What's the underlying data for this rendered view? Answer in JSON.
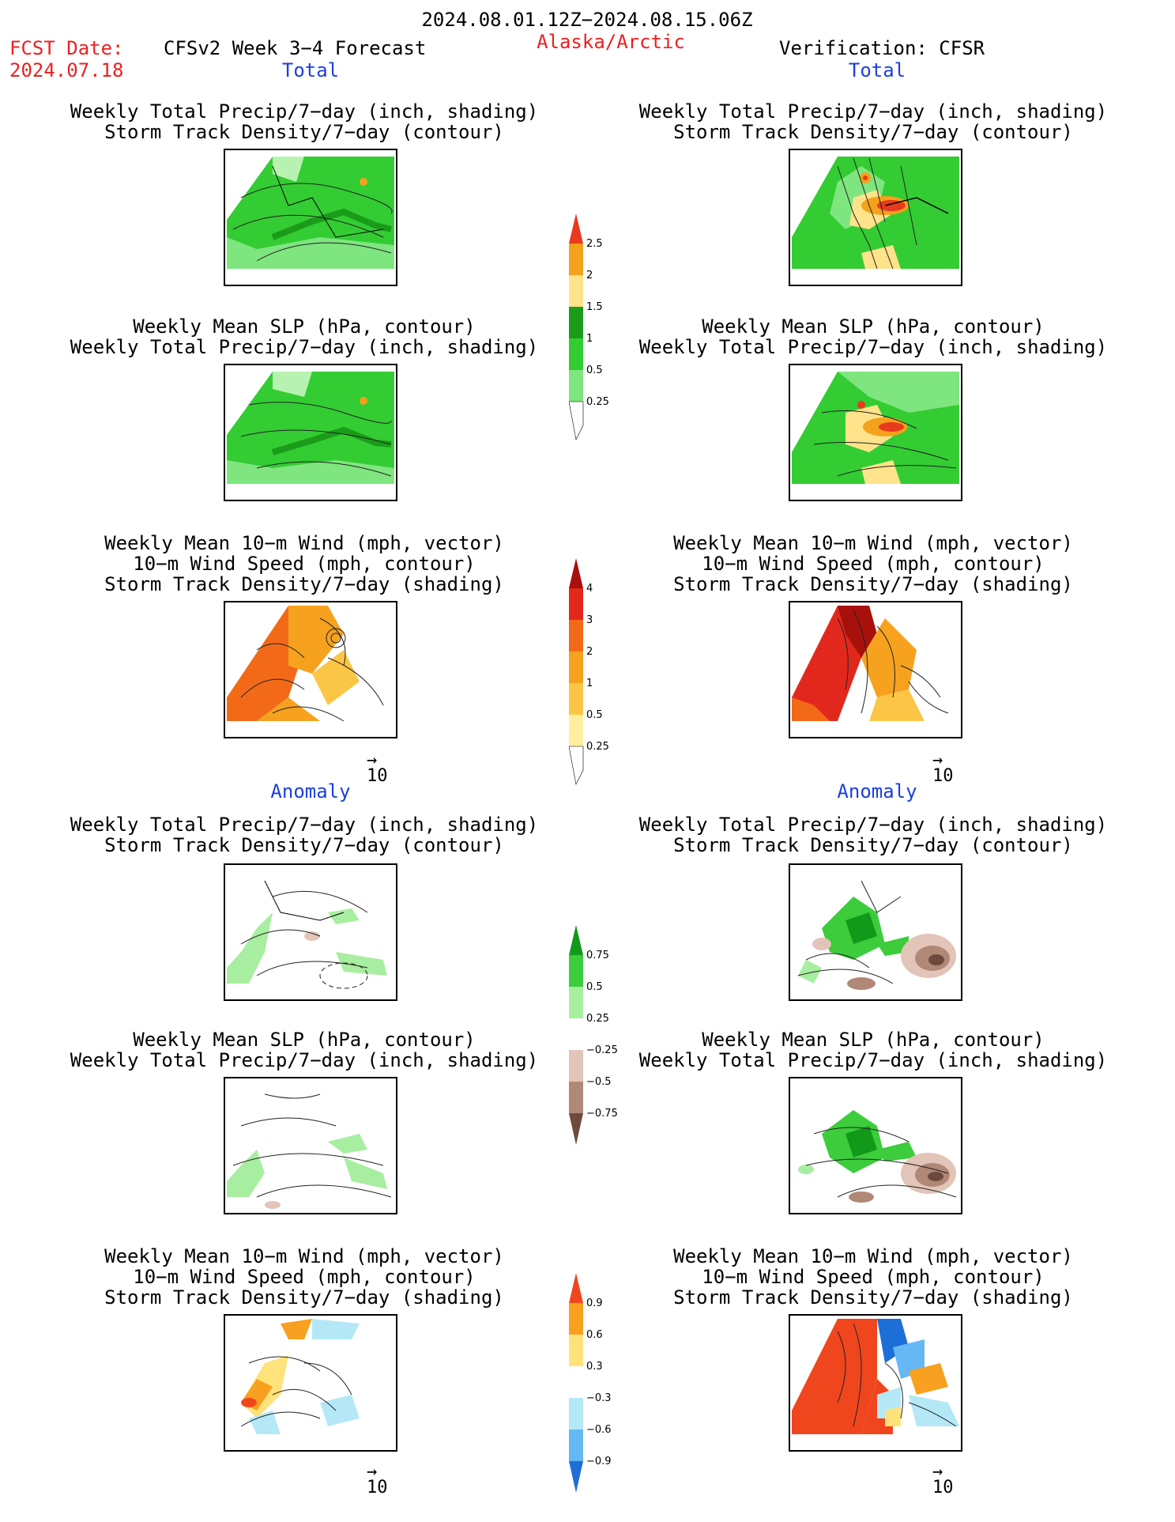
{
  "header": {
    "date_range": "2024.08.01.12Z−2024.08.15.06Z",
    "fcst_date_label": "FCST Date:",
    "fcst_date_value": "2024.07.18",
    "model_label": "CFSv2 Week 3−4 Forecast",
    "region": "Alaska/Arctic",
    "verification": "Verification: CFSR"
  },
  "sections": {
    "total": "Total",
    "anomaly": "Anomaly"
  },
  "titles": {
    "precip_storm": [
      "Weekly Total Precip/7−day (inch, shading)",
      "Storm Track Density/7−day (contour)"
    ],
    "slp_precip": [
      "Weekly Mean SLP (hPa, contour)",
      "Weekly Total Precip/7−day (inch, shading)"
    ],
    "wind_storm": [
      "Weekly Mean 10−m Wind (mph, vector)",
      "10−m Wind Speed (mph, contour)",
      "Storm Track Density/7−day (shading)"
    ]
  },
  "vector_ref": "10",
  "colorbars": {
    "total_precip": {
      "labels": [
        "2.5",
        "2",
        "1.5",
        "1",
        "0.5",
        "0.25"
      ],
      "colors": [
        "#e83a1e",
        "#f4a11c",
        "#ffe38a",
        "#1a9c1a",
        "#33cc33",
        "#7fe57f",
        "#b8f2b0"
      ]
    },
    "total_storm": {
      "labels": [
        "4",
        "3",
        "2",
        "1",
        "0.5",
        "0.25"
      ],
      "colors": [
        "#a8100c",
        "#e2281c",
        "#f26a17",
        "#f6a21e",
        "#fbc646",
        "#ffef9e",
        "#fff7d0"
      ]
    },
    "anom_precip": {
      "labels": [
        "0.75",
        "0.5",
        "0.25",
        "−0.25",
        "−0.5",
        "−0.75"
      ],
      "colors": [
        "#119a19",
        "#3ccc3c",
        "#a8eea0",
        "#ffffff",
        "#e2c4b8",
        "#b08878",
        "#6e4a3e"
      ]
    },
    "anom_storm": {
      "labels": [
        "0.9",
        "0.6",
        "0.3",
        "−0.3",
        "−0.6",
        "−0.9"
      ],
      "colors": [
        "#f0461e",
        "#f8a020",
        "#ffe27a",
        "#ffffff",
        "#b4e8f6",
        "#66b8f4",
        "#1e6ed8"
      ]
    }
  }
}
